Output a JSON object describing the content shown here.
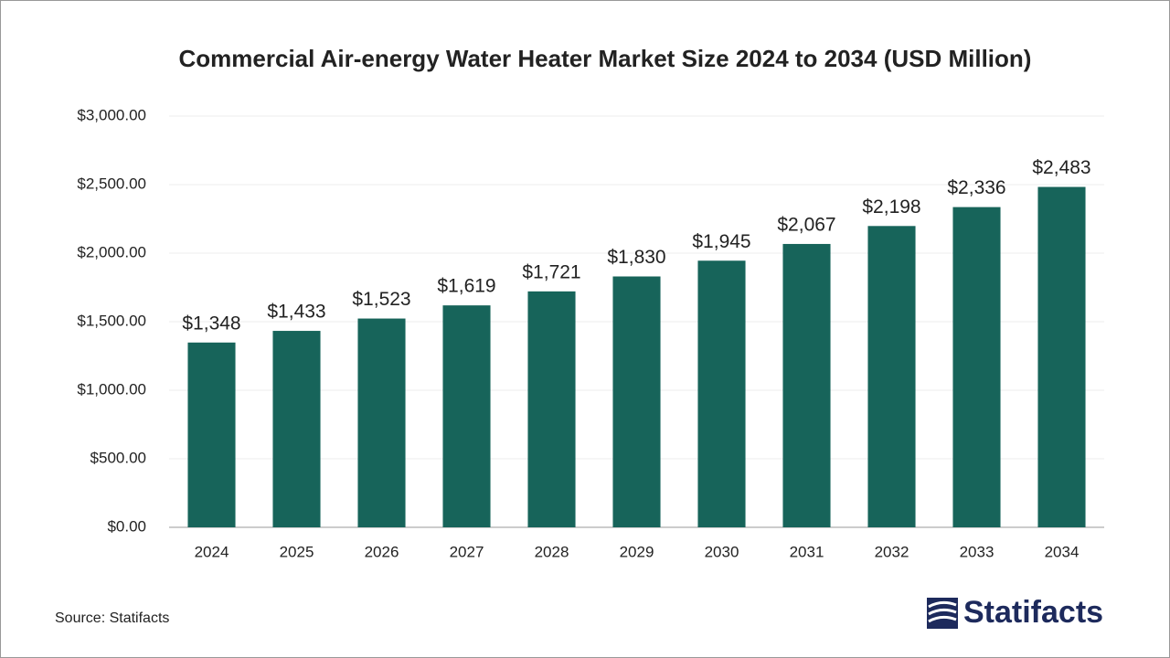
{
  "chart_data": {
    "type": "bar",
    "title": "Commercial Air-energy Water Heater Market Size 2024 to 2034 (USD Million)",
    "categories": [
      "2024",
      "2025",
      "2026",
      "2027",
      "2028",
      "2029",
      "2030",
      "2031",
      "2032",
      "2033",
      "2034"
    ],
    "values": [
      1348,
      1433,
      1523,
      1619,
      1721,
      1830,
      1945,
      2067,
      2198,
      2336,
      2483
    ],
    "value_labels": [
      "$1,348",
      "$1,433",
      "$1,523",
      "$1,619",
      "$1,721",
      "$1,830",
      "$1,945",
      "$2,067",
      "$2,198",
      "$2,336",
      "$2,483"
    ],
    "color": "#17645a",
    "ylim": [
      0,
      3000
    ],
    "yticks": [
      {
        "value": 0,
        "label": "$0.00"
      },
      {
        "value": 500,
        "label": "$500.00"
      },
      {
        "value": 1000,
        "label": "$1,000.00"
      },
      {
        "value": 1500,
        "label": "$1,500.00"
      },
      {
        "value": 2000,
        "label": "$2,000.00"
      },
      {
        "value": 2500,
        "label": "$2,500.00"
      },
      {
        "value": 3000,
        "label": "$3,000.00"
      }
    ],
    "grid": true,
    "source": "Source: Statifacts",
    "logo": "Statifacts"
  }
}
